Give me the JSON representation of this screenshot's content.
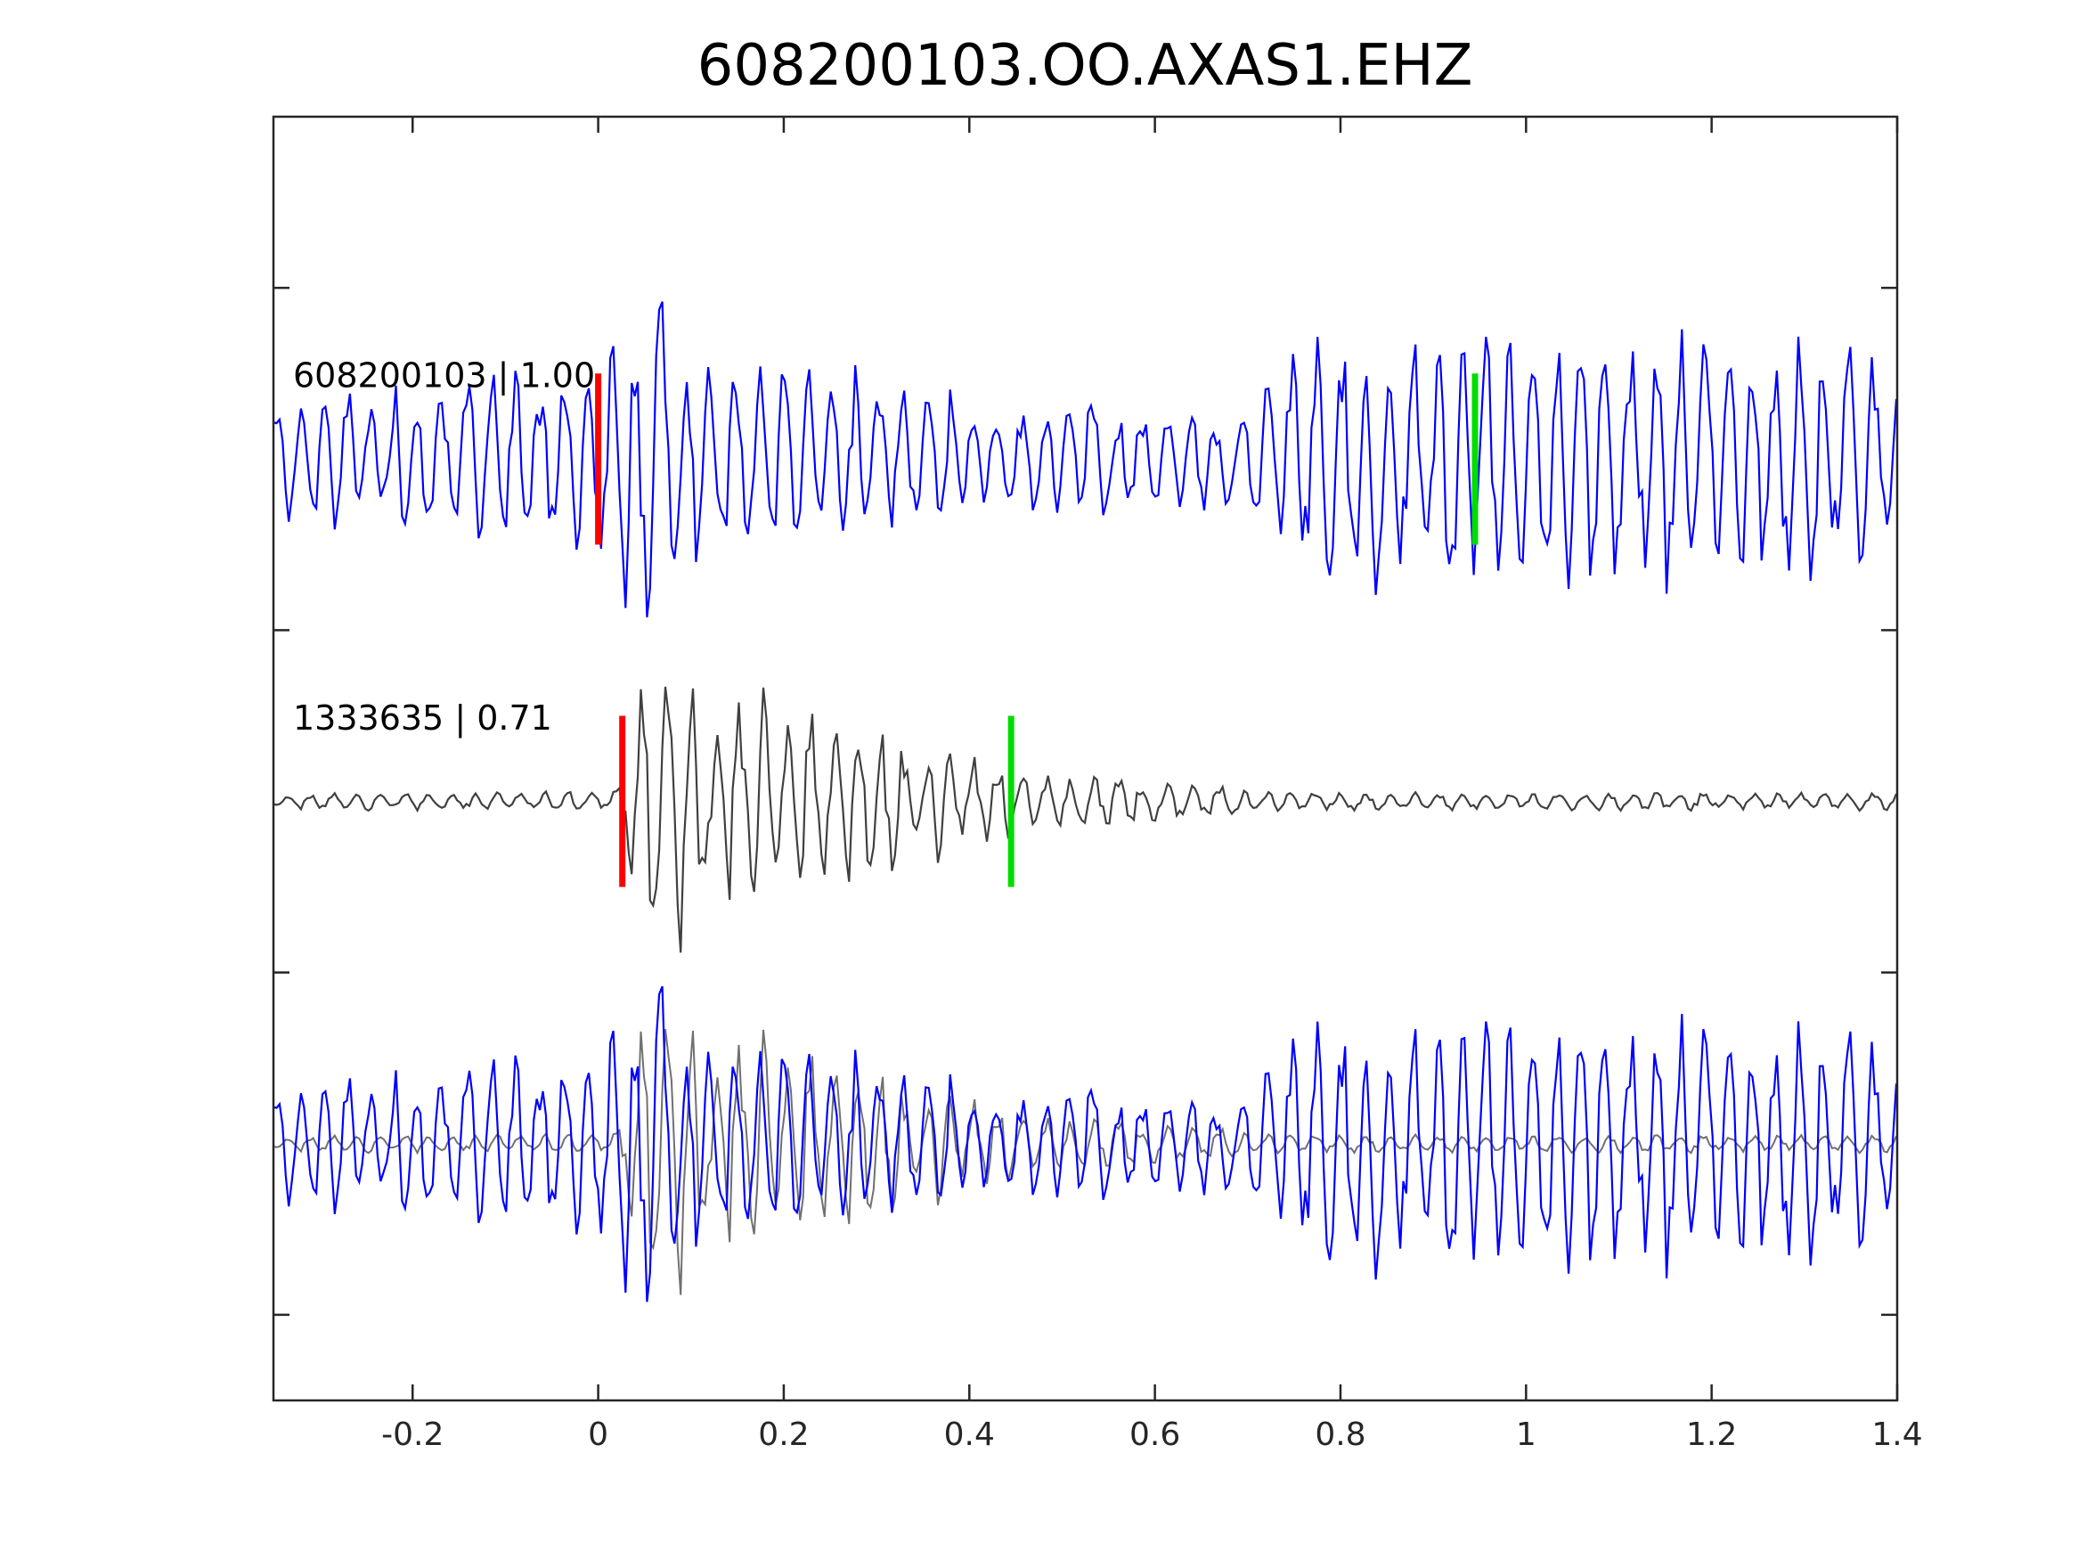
{
  "chart_data": {
    "type": "line",
    "title": "608200103.OO.AXAS1.EHZ",
    "xlabel": "",
    "ylabel": "",
    "xlim": [
      -0.35,
      1.4
    ],
    "ylim": [
      0,
      7.5
    ],
    "x_ticks": [
      -0.2,
      0,
      0.2,
      0.4,
      0.6,
      0.8,
      1,
      1.2,
      1.4
    ],
    "x_tick_labels": [
      "-0.2",
      "0",
      "0.2",
      "0.4",
      "0.6",
      "0.8",
      "1",
      "1.2",
      "1.4"
    ],
    "y_ticks": [
      0.5,
      2.5,
      4.5,
      6.5
    ],
    "y_tick_labels": [
      "",
      "",
      "",
      ""
    ],
    "grid": false,
    "traces": [
      {
        "label": "608200103 | 1.00",
        "baseline": 5.5,
        "color": "#0000ff",
        "picks": [
          {
            "x": 0.0,
            "color": "#ff0000"
          },
          {
            "x": 0.945,
            "color": "#00dd00"
          }
        ],
        "envelope": [
          [
            -0.35,
            0.35
          ],
          [
            -0.1,
            0.5
          ],
          [
            0.0,
            0.5
          ],
          [
            0.06,
            1.1
          ],
          [
            0.09,
            0.6
          ],
          [
            0.3,
            0.45
          ],
          [
            0.45,
            0.3
          ],
          [
            0.7,
            0.3
          ],
          [
            0.74,
            0.75
          ],
          [
            1.0,
            0.75
          ],
          [
            1.4,
            0.6
          ]
        ],
        "period": 0.026,
        "max_amplitude": 1.1
      },
      {
        "label": "1333635 | 0.71",
        "baseline": 3.5,
        "color": "#404040",
        "picks": [
          {
            "x": 0.026,
            "color": "#ff0000"
          },
          {
            "x": 0.445,
            "color": "#00dd00"
          }
        ],
        "envelope": [
          [
            -0.35,
            0.04
          ],
          [
            0.02,
            0.06
          ],
          [
            0.03,
            0.45
          ],
          [
            0.06,
            0.9
          ],
          [
            0.13,
            0.65
          ],
          [
            0.3,
            0.45
          ],
          [
            0.42,
            0.22
          ],
          [
            0.6,
            0.12
          ],
          [
            0.75,
            0.05
          ],
          [
            1.4,
            0.05
          ]
        ],
        "period": 0.026,
        "max_amplitude": 0.9
      },
      {
        "label": "",
        "baseline": 1.5,
        "color": "#0000ff",
        "overlay_color": "#707070",
        "description_series": [
          "608200103",
          "1333635"
        ]
      }
    ]
  }
}
